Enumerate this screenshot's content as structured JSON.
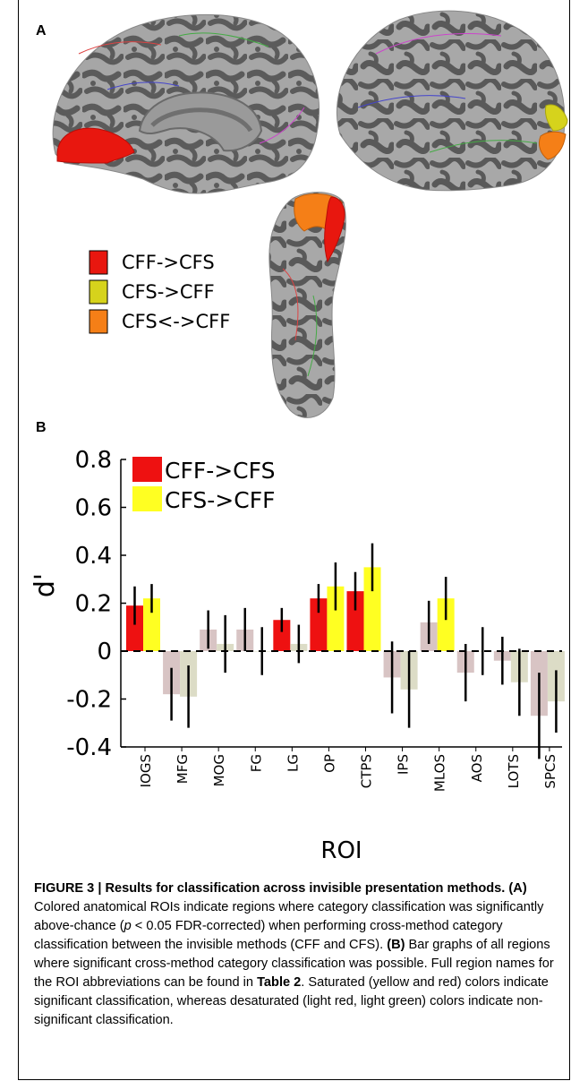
{
  "panel_a": {
    "letter": "A",
    "legend": [
      {
        "label": "CFF->CFS",
        "color": "#e8170f"
      },
      {
        "label": "CFS->CFF",
        "color": "#d6d31c"
      },
      {
        "label": "CFS<->CFF",
        "color": "#f57f17"
      }
    ]
  },
  "panel_b": {
    "letter": "B"
  },
  "chart_data": {
    "type": "bar",
    "xlabel": "ROI",
    "ylabel": "d'",
    "ylim": [
      -0.4,
      0.8
    ],
    "yticks": [
      "0.8",
      "0.6",
      "0.4",
      "0.2",
      "0",
      "-0.2",
      "-0.4"
    ],
    "categories": [
      "IOGS",
      "MFG",
      "MOG",
      "FG",
      "LG",
      "OP",
      "CTPS",
      "IPS",
      "MLOS",
      "AOS",
      "LOTS",
      "SPCS"
    ],
    "legend_position": "top-left",
    "colors": {
      "series1_significant": "#ee1111",
      "series1_nonsignificant": "#d8c4c4",
      "series2_significant": "#ffff22",
      "series2_nonsignificant": "#dcdcc6"
    },
    "series": [
      {
        "name": "CFF->CFS",
        "values": [
          0.19,
          -0.18,
          0.09,
          0.09,
          0.13,
          0.22,
          0.25,
          -0.11,
          0.12,
          -0.09,
          -0.04,
          -0.27
        ],
        "error": [
          0.08,
          0.11,
          0.08,
          0.09,
          0.05,
          0.06,
          0.08,
          0.15,
          0.09,
          0.12,
          0.1,
          0.18
        ],
        "significant": [
          true,
          false,
          false,
          false,
          true,
          true,
          true,
          false,
          false,
          false,
          false,
          false
        ]
      },
      {
        "name": "CFS->CFF",
        "values": [
          0.22,
          -0.19,
          0.03,
          0.0,
          0.03,
          0.27,
          0.35,
          -0.16,
          0.22,
          0.0,
          -0.13,
          -0.21
        ],
        "error": [
          0.06,
          0.13,
          0.12,
          0.1,
          0.08,
          0.1,
          0.1,
          0.16,
          0.09,
          0.1,
          0.14,
          0.13
        ],
        "significant": [
          true,
          false,
          false,
          false,
          false,
          true,
          true,
          false,
          true,
          false,
          false,
          false
        ]
      }
    ]
  },
  "caption": {
    "title": "FIGURE 3 | Results for classification across invisible presentation methods.",
    "a_label": "(A)",
    "a_text_1": " Colored anatomical ROIs indicate regions where category classification was significantly above-chance (",
    "p_symbol": "p",
    "a_text_2": " < 0.05 FDR-corrected) when performing cross-method category classification between the invisible methods (CFF and CFS). ",
    "b_label": "(B)",
    "b_text_1": " Bar graphs of all regions where significant cross-method category classification was possible. Full region names for the ROI abbreviations can be found in ",
    "table_ref": "Table 2",
    "b_text_2": ". Saturated (yellow and red) colors indicate significant classification, whereas desaturated (light red, light green) colors indicate non-significant classification."
  }
}
